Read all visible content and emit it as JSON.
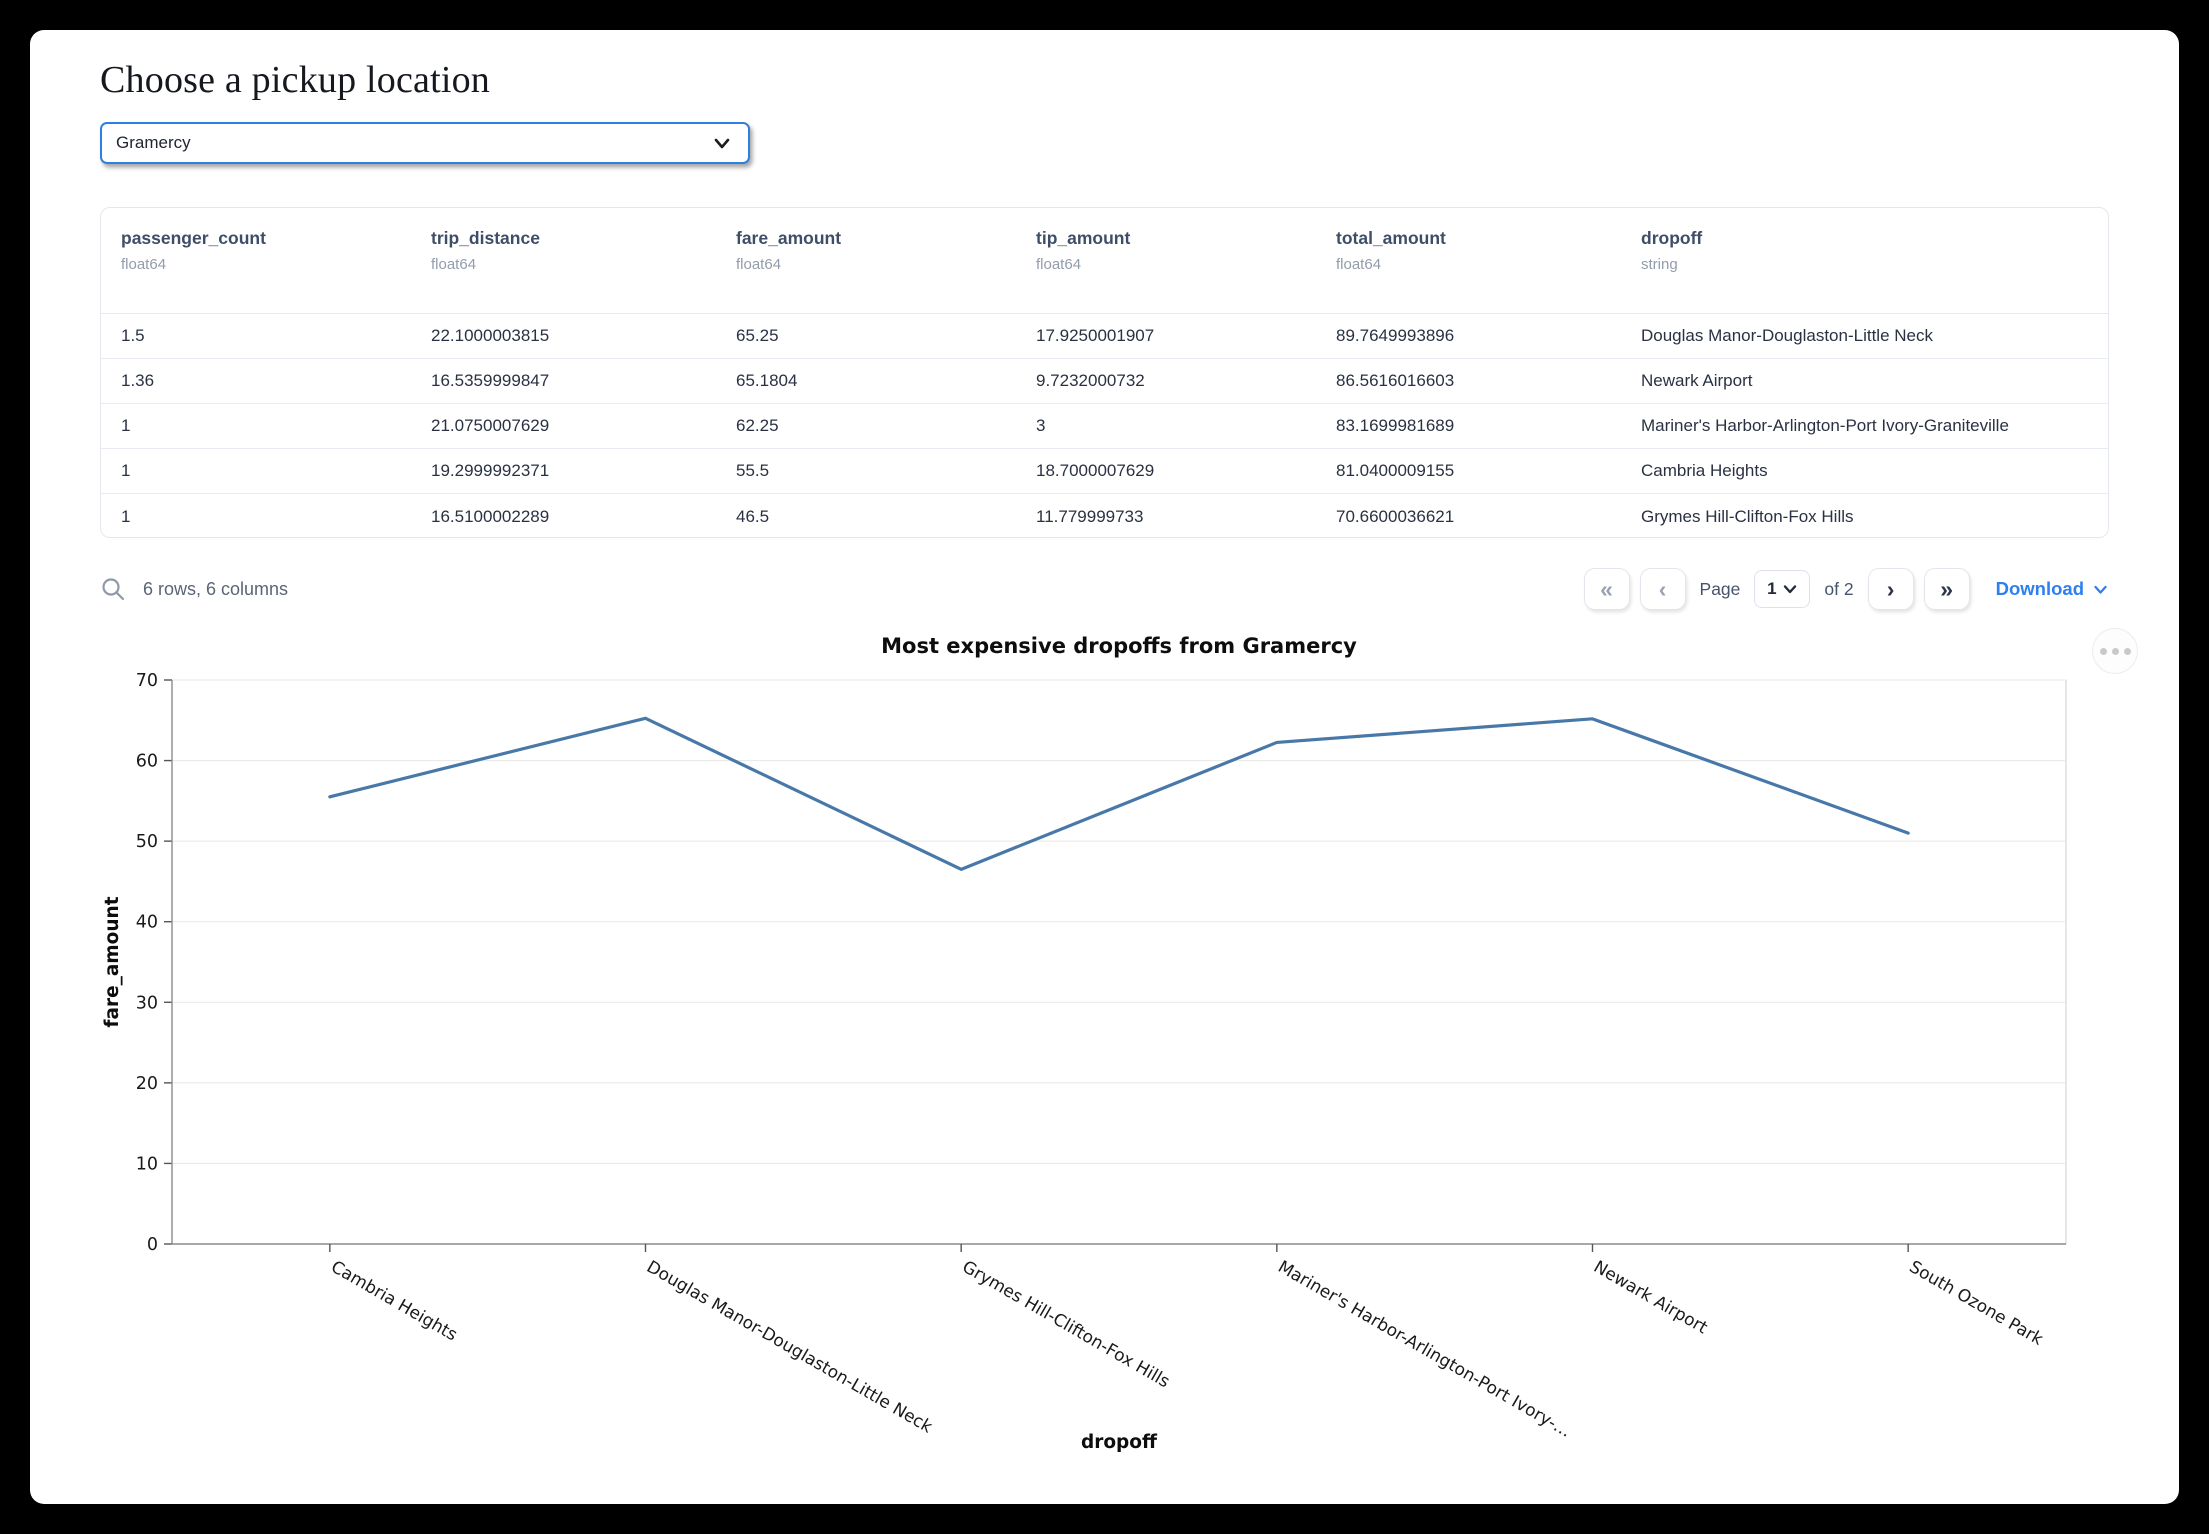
{
  "page": {
    "title": "Choose a pickup location"
  },
  "pickup_select": {
    "value": "Gramercy"
  },
  "table": {
    "columns": [
      {
        "name": "passenger_count",
        "type": "float64"
      },
      {
        "name": "trip_distance",
        "type": "float64"
      },
      {
        "name": "fare_amount",
        "type": "float64"
      },
      {
        "name": "tip_amount",
        "type": "float64"
      },
      {
        "name": "total_amount",
        "type": "float64"
      },
      {
        "name": "dropoff",
        "type": "string"
      }
    ],
    "rows": [
      [
        "1.5",
        "22.1000003815",
        "65.25",
        "17.9250001907",
        "89.7649993896",
        "Douglas Manor-Douglaston-Little Neck"
      ],
      [
        "1.36",
        "16.5359999847",
        "65.1804",
        "9.7232000732",
        "86.5616016603",
        "Newark Airport"
      ],
      [
        "1",
        "21.0750007629",
        "62.25",
        "3",
        "83.1699981689",
        "Mariner's Harbor-Arlington-Port Ivory-Graniteville"
      ],
      [
        "1",
        "19.2999992371",
        "55.5",
        "18.7000007629",
        "81.0400009155",
        "Cambria Heights"
      ],
      [
        "1",
        "16.5100002289",
        "46.5",
        "11.779999733",
        "70.6600036621",
        "Grymes Hill-Clifton-Fox Hills"
      ]
    ],
    "summary": "6 rows, 6 columns",
    "pagination": {
      "first": "«",
      "prev": "‹",
      "next": "›",
      "last": "»",
      "page_label": "Page",
      "current_page": "1",
      "of_label": "of 2"
    },
    "download_label": "Download"
  },
  "chart_data": {
    "type": "line",
    "title": "Most expensive dropoffs from Gramercy",
    "xlabel": "dropoff",
    "ylabel": "fare_amount",
    "categories": [
      "Cambria Heights",
      "Douglas Manor-Douglaston-Little Neck",
      "Grymes Hill-Clifton-Fox Hills",
      "Mariner's Harbor-Arlington-Port Ivory-…",
      "Newark Airport",
      "South Ozone Park"
    ],
    "values": [
      55.5,
      65.25,
      46.5,
      62.25,
      65.1804,
      51
    ],
    "ylim": [
      0,
      70
    ],
    "yticks": [
      0,
      10,
      20,
      30,
      40,
      50,
      60,
      70
    ],
    "grid": true,
    "legend": "none",
    "line_color": "#4878a8"
  },
  "colors": {
    "accent_blue": "#2e7fe0",
    "link_blue": "#2e7ff2",
    "line_blue": "#4878a8"
  }
}
